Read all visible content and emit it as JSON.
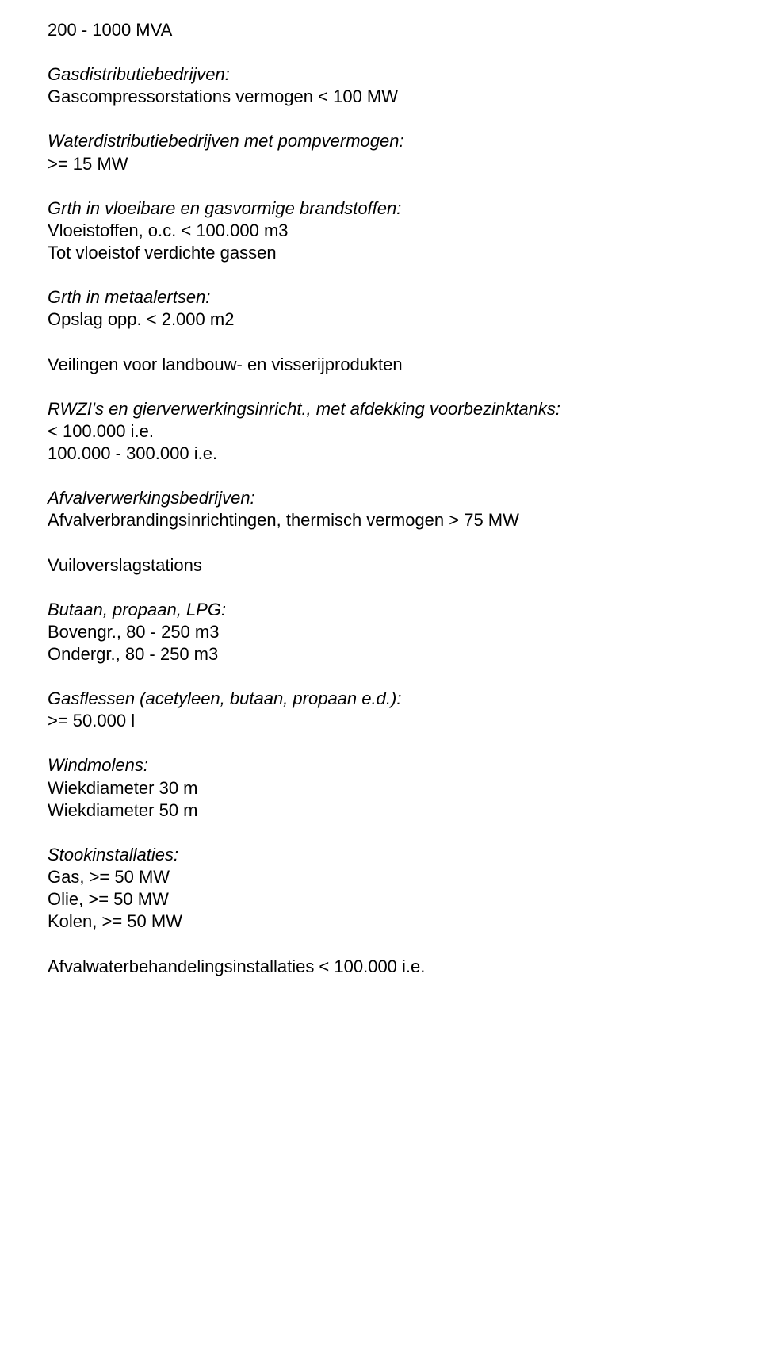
{
  "doc": {
    "background_color": "#ffffff",
    "text_color": "#000000",
    "font_family": "Arial, Helvetica, sans-serif",
    "font_size_pt": 16,
    "line1": "200 - 1000 MVA",
    "gasdist_heading": "Gasdistributiebedrijven:",
    "gasdist_line": "Gascompressorstations vermogen < 100 MW",
    "waterdist_heading": "Waterdistributiebedrijven met pompvermogen:",
    "waterdist_line": ">= 15 MW",
    "grth_brandstoffen_heading": "Grth in vloeibare en gasvormige brandstoffen:",
    "grth_brandstoffen_line1": "Vloeistoffen, o.c. < 100.000 m3",
    "grth_brandstoffen_line2": "Tot vloeistof verdichte gassen",
    "grth_metaal_heading": "Grth in metaalertsen:",
    "grth_metaal_line": "Opslag opp. < 2.000 m2",
    "veilingen_line": "Veilingen voor landbouw- en visserijprodukten",
    "rwzi_heading": "RWZI's en gierverwerkingsinricht., met afdekking voorbezinktanks:",
    "rwzi_line1": "< 100.000 i.e.",
    "rwzi_line2": "100.000 - 300.000 i.e.",
    "afval_heading": "Afvalverwerkingsbedrijven:",
    "afval_line": "Afvalverbrandingsinrichtingen, thermisch vermogen > 75 MW",
    "vuil_line": "Vuiloverslagstations",
    "butaan_heading": "Butaan, propaan, LPG:",
    "butaan_line1": "Bovengr., 80 - 250 m3",
    "butaan_line2": "Ondergr., 80 - 250 m3",
    "gasflessen_heading": "Gasflessen (acetyleen, butaan, propaan e.d.):",
    "gasflessen_line": ">= 50.000 l",
    "windmolens_heading": "Windmolens:",
    "windmolens_line1": "Wiekdiameter 30 m",
    "windmolens_line2": "Wiekdiameter 50 m",
    "stook_heading": "Stookinstallaties:",
    "stook_line1": "Gas, >= 50 MW",
    "stook_line2": "Olie, >= 50 MW",
    "stook_line3": "Kolen, >= 50 MW",
    "afvalwater_line": "Afvalwaterbehandelingsinstallaties < 100.000 i.e."
  }
}
